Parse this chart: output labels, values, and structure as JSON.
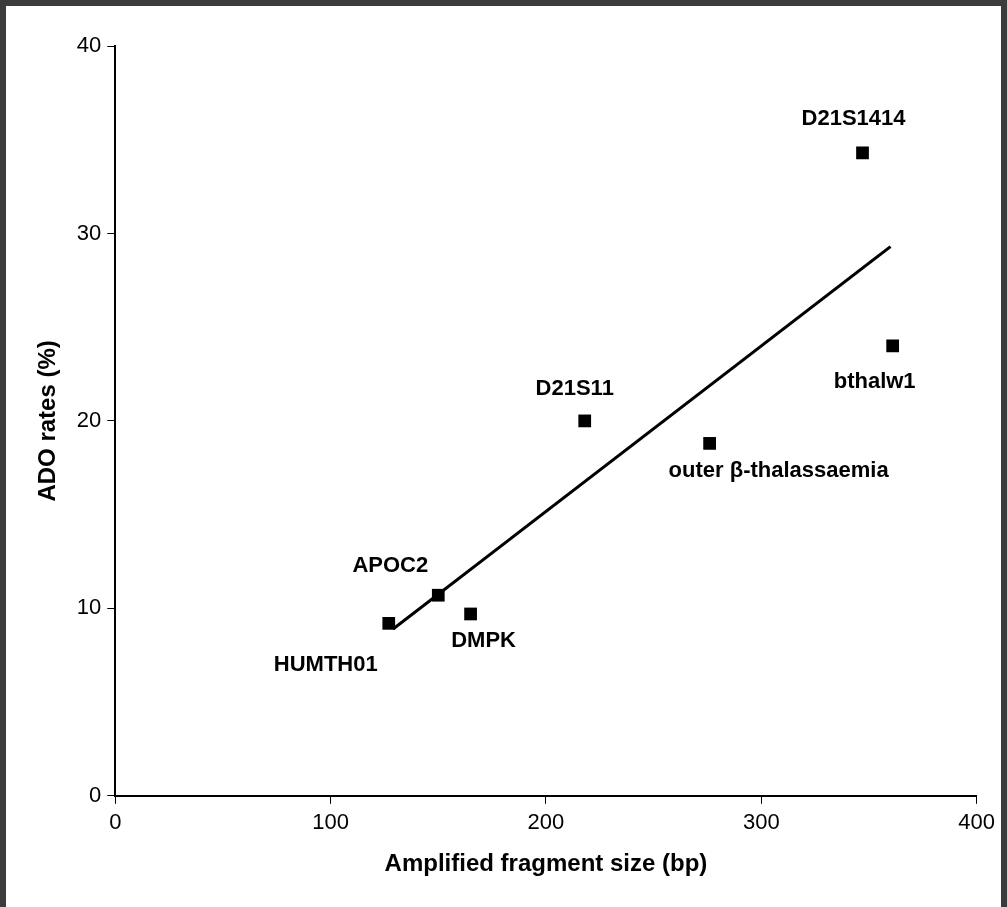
{
  "chart_data": {
    "type": "scatter",
    "xlabel": "Amplified fragment size (bp)",
    "ylabel": "ADO rates (%)",
    "series": [
      {
        "type": "scatter",
        "color": "#000000",
        "marker": "square",
        "x": [
          127,
          150,
          165,
          218,
          276,
          361,
          347
        ],
        "values": [
          9.2,
          10.7,
          9.7,
          20.0,
          18.8,
          24.0,
          34.3
        ]
      },
      {
        "type": "line",
        "color": "#000000",
        "marker": "none",
        "line_style": "solid",
        "x": [
          129,
          360
        ],
        "values": [
          8.9,
          29.3
        ]
      }
    ],
    "annotations": [
      {
        "text": "HUMTH01",
        "x": 127,
        "y": 9.2
      },
      {
        "text": "APOC2",
        "x": 150,
        "y": 10.7
      },
      {
        "text": "DMPK",
        "x": 165,
        "y": 9.7
      },
      {
        "text": "D21S11",
        "x": 218,
        "y": 20.0
      },
      {
        "text": "outer β-thalassaemia",
        "x": 276,
        "y": 18.8
      },
      {
        "text": "bthalw1",
        "x": 361,
        "y": 24.0
      },
      {
        "text": "D21S1414",
        "x": 347,
        "y": 34.3
      }
    ],
    "xlim": [
      0,
      400
    ],
    "xticks": [
      0,
      100,
      200,
      300,
      400
    ],
    "ylim": [
      0,
      40
    ],
    "yticks": [
      0,
      10,
      20,
      30,
      40
    ],
    "grid": false,
    "legend": false
  }
}
